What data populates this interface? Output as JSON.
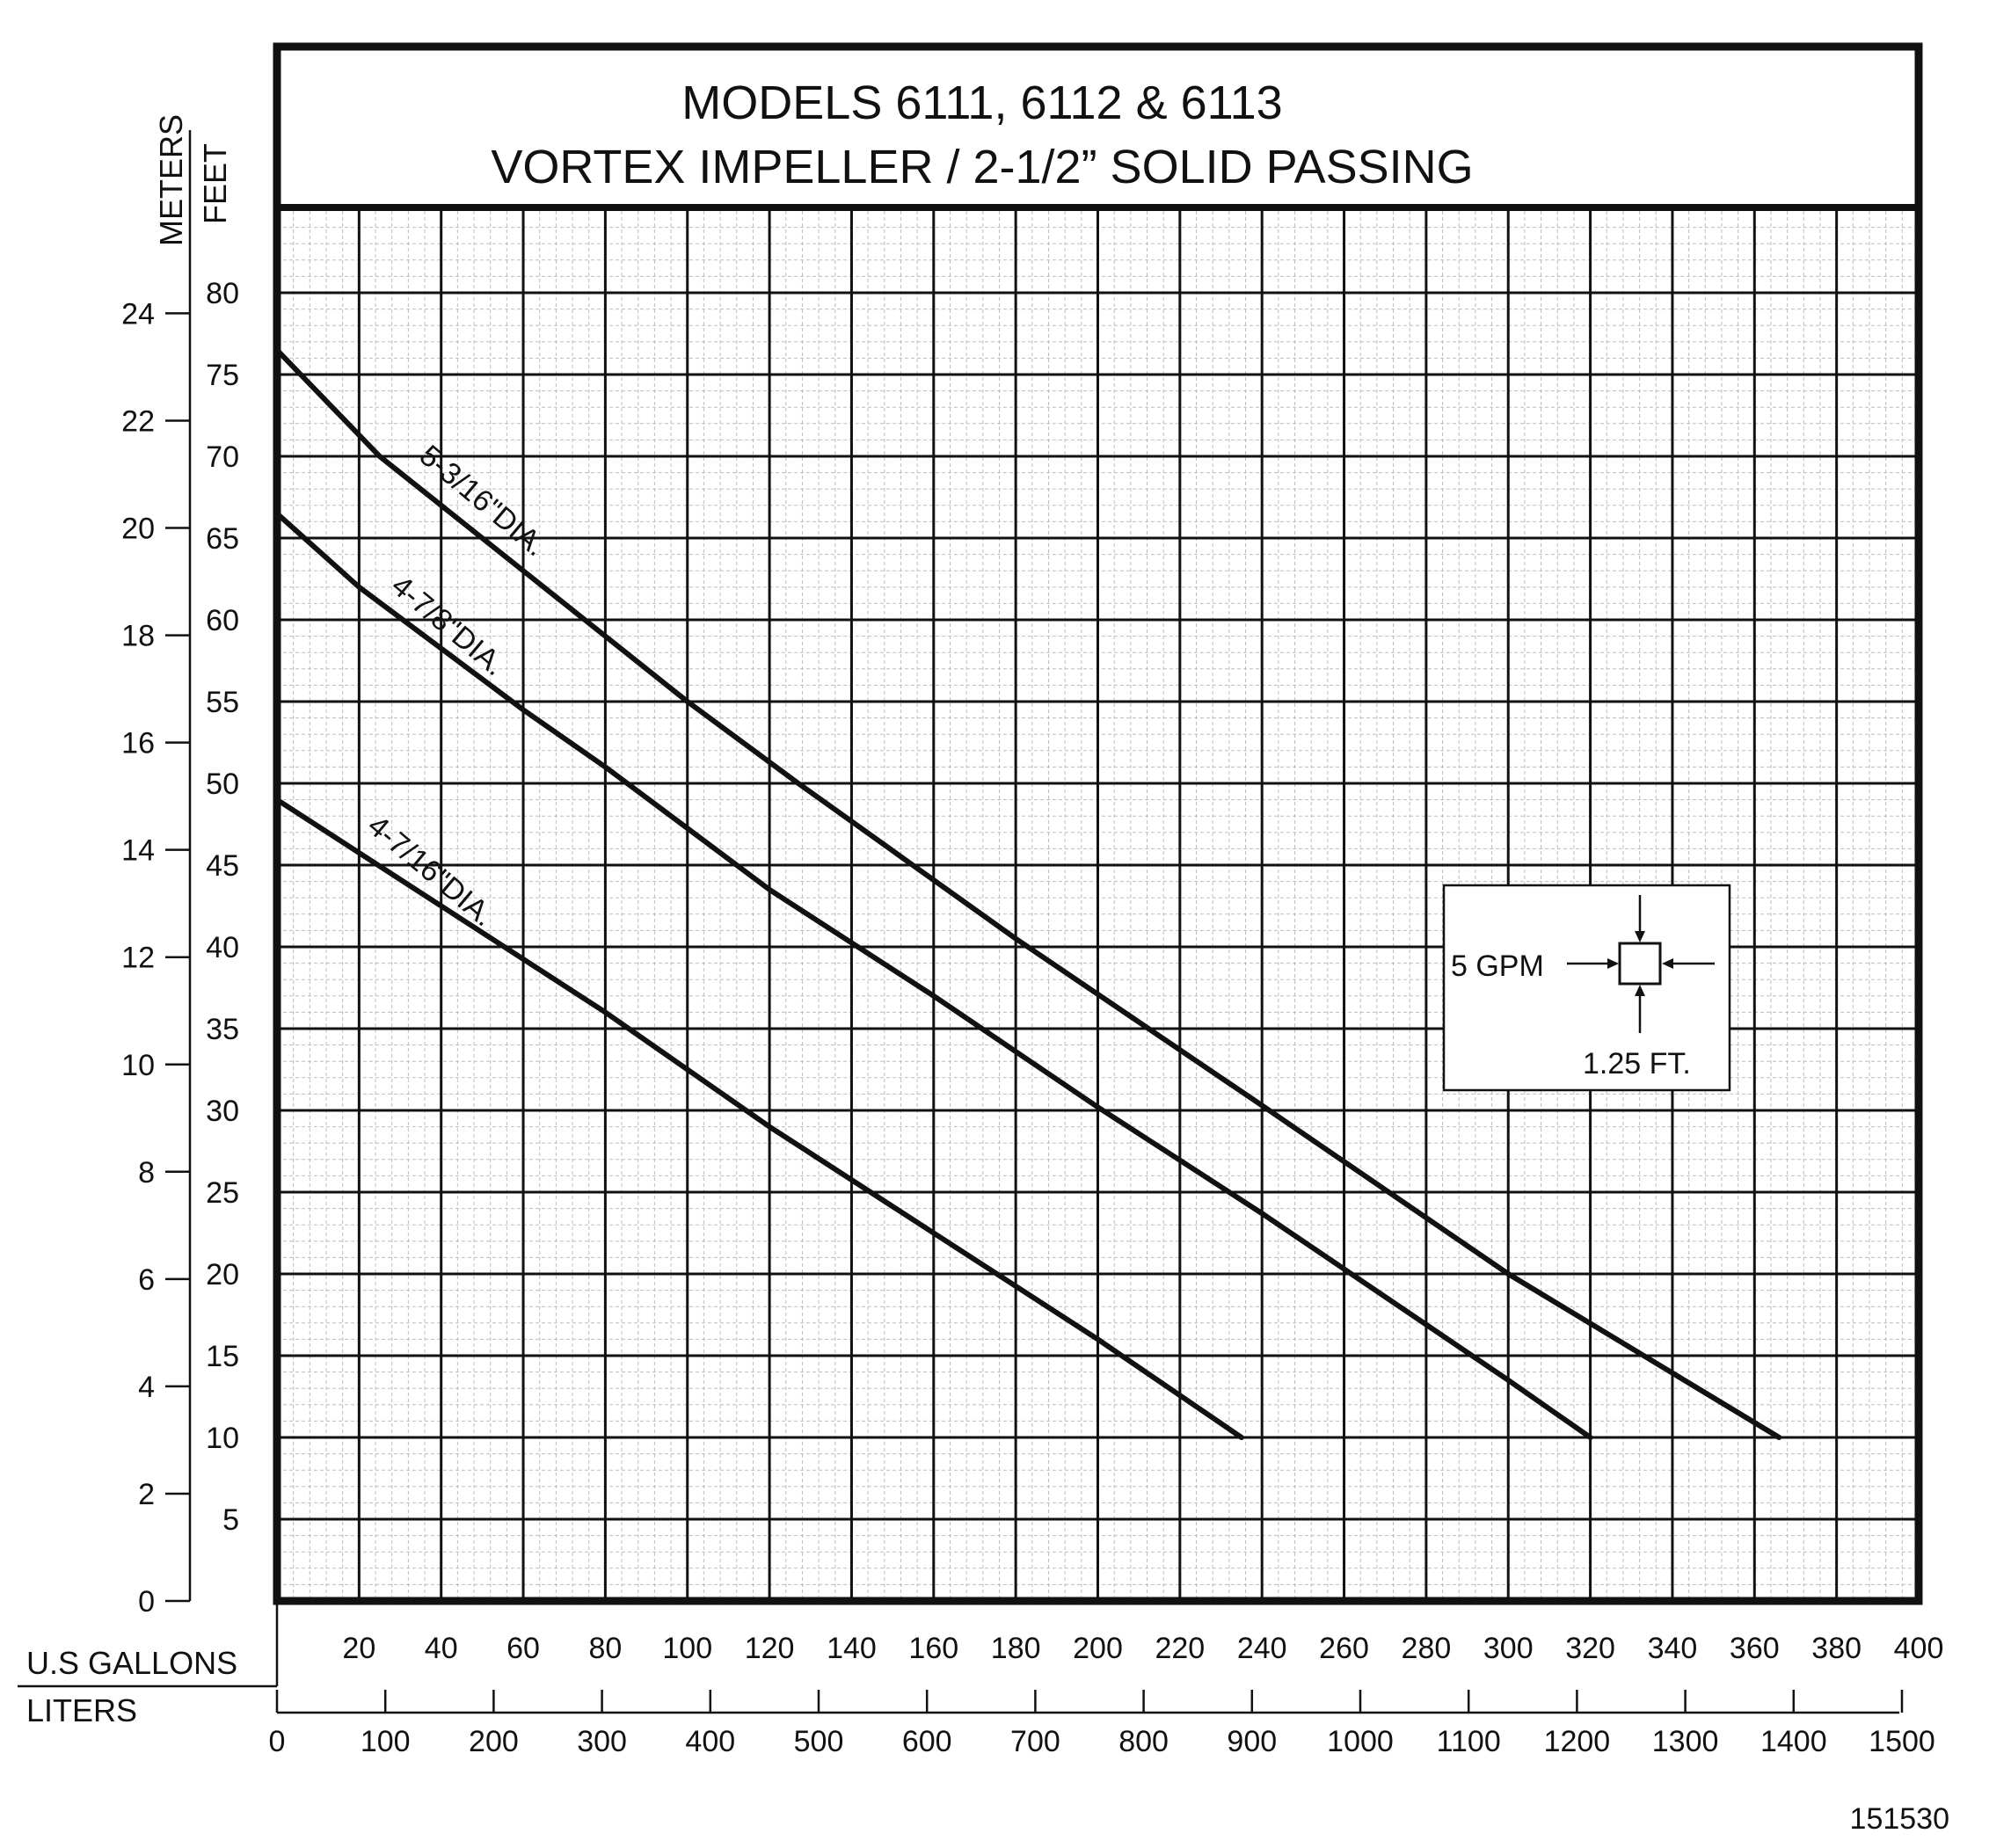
{
  "chart_data": {
    "type": "line",
    "title_line1": "MODELS 6111, 6112 & 6113",
    "title_line2": "VORTEX IMPELLER / 2-1/2” SOLID PASSING",
    "left_axis_unit": "METERS",
    "right_axis_unit": "FEET",
    "x_unit_gallons": "U.S GALLONS",
    "x_unit_liters": "LITERS",
    "xlim_gallons": [
      0,
      400
    ],
    "ylim_feet": [
      0,
      85
    ],
    "grid": true,
    "gallon_ticks": [
      "20",
      "40",
      "60",
      "80",
      "100",
      "120",
      "140",
      "160",
      "180",
      "200",
      "220",
      "240",
      "260",
      "280",
      "300",
      "320",
      "340",
      "360",
      "380",
      "400"
    ],
    "liter_ticks": [
      "0",
      "100",
      "200",
      "300",
      "400",
      "500",
      "600",
      "700",
      "800",
      "900",
      "1000",
      "1100",
      "1200",
      "1300",
      "1400",
      "1500"
    ],
    "feet_ticks": [
      "5",
      "10",
      "15",
      "20",
      "25",
      "30",
      "35",
      "40",
      "45",
      "50",
      "55",
      "60",
      "65",
      "70",
      "75",
      "80"
    ],
    "meter_ticks": [
      "0",
      "2",
      "4",
      "6",
      "8",
      "10",
      "12",
      "14",
      "16",
      "18",
      "20",
      "22",
      "24"
    ],
    "series": [
      {
        "name": "5-3/16\"DIA.",
        "x": [
          0,
          25,
          60,
          100,
          127,
          180,
          240,
          300,
          366
        ],
        "y": [
          76.5,
          70,
          63,
          55,
          50,
          40.5,
          30.3,
          20,
          10
        ]
      },
      {
        "name": "4-7/8\"DIA.",
        "x": [
          0,
          20,
          60,
          80,
          120,
          160,
          200,
          240,
          300,
          320
        ],
        "y": [
          66.5,
          62,
          54.5,
          51,
          43.5,
          37,
          30.2,
          23.7,
          13.5,
          10
        ]
      },
      {
        "name": "4-7/16\"DIA.",
        "x": [
          0,
          40,
          80,
          120,
          160,
          200,
          235
        ],
        "y": [
          49,
          42.5,
          36,
          29,
          22.5,
          16,
          10
        ]
      }
    ],
    "legend_box": {
      "flow_label": "5 GPM",
      "head_label": "1.25 FT."
    }
  },
  "figure_id": "151530",
  "style": {
    "ink": "#111111",
    "minor_grid": "#bdbdbd",
    "background": "#ffffff"
  }
}
